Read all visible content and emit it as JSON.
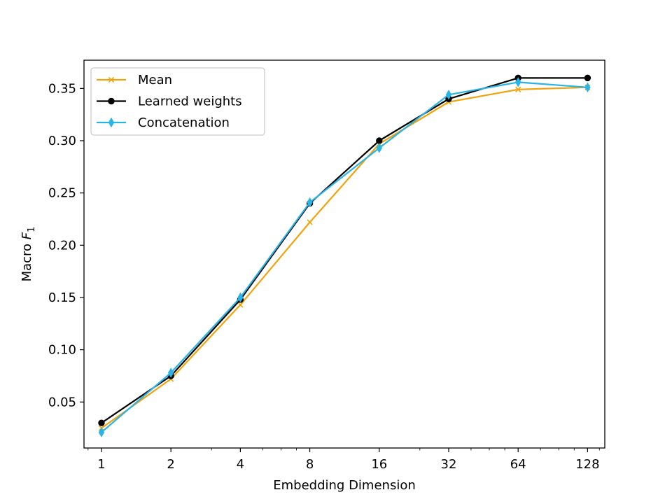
{
  "chart_data": {
    "type": "line",
    "title": "",
    "xlabel": "Embedding Dimension",
    "ylabel_text": "Macro",
    "ylabel_symbol": "F",
    "ylabel_subscript": "1",
    "x_scale": "log2",
    "x": [
      1,
      2,
      4,
      8,
      16,
      32,
      64,
      128
    ],
    "x_tick_labels": [
      "1",
      "2",
      "4",
      "8",
      "16",
      "32",
      "64",
      "128"
    ],
    "xlim": [
      0.84,
      152
    ],
    "ylim": [
      0.006,
      0.377
    ],
    "y_ticks": [
      0.05,
      0.1,
      0.15,
      0.2,
      0.25,
      0.3,
      0.35
    ],
    "y_tick_labels": [
      "0.05",
      "0.10",
      "0.15",
      "0.20",
      "0.25",
      "0.30",
      "0.35"
    ],
    "grid": false,
    "legend_position": "top-left",
    "series": [
      {
        "name": "Mean",
        "color": "#f0a30a",
        "marker": "x",
        "values": [
          0.025,
          0.072,
          0.143,
          0.222,
          0.297,
          0.337,
          0.349,
          0.351
        ]
      },
      {
        "name": "Learned weights",
        "color": "#000000",
        "marker": "circle",
        "values": [
          0.03,
          0.075,
          0.148,
          0.24,
          0.3,
          0.34,
          0.36,
          0.36
        ]
      },
      {
        "name": "Concatenation",
        "color": "#29b4e6",
        "marker": "thin-diamond",
        "values": [
          0.021,
          0.078,
          0.15,
          0.241,
          0.293,
          0.344,
          0.356,
          0.351
        ]
      }
    ]
  }
}
